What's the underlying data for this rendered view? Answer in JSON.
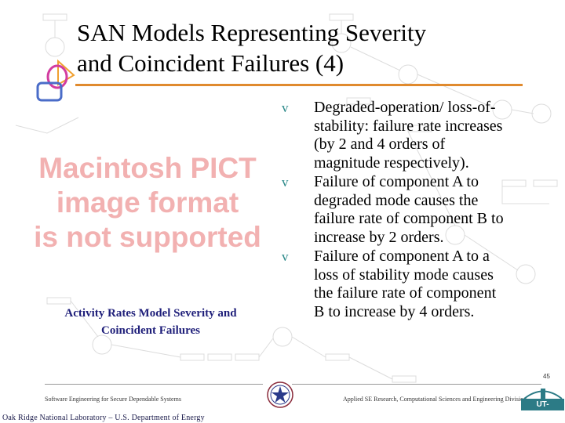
{
  "slide": {
    "title_line1": "SAN Models Representing Severity",
    "title_line2": "and Coincident Failures (4)",
    "image_placeholder": {
      "line1": "Macintosh PICT",
      "line2": "image format",
      "line3": "is not supported"
    },
    "figure_caption_line1": "Activity Rates Model Severity and",
    "figure_caption_line2": "Coincident Failures",
    "bullet_glyph": "v",
    "bullets": [
      {
        "line1": "Degraded-operation/ loss-of-",
        "line2": "stability: failure rate increases",
        "line3": "(by 2 and 4 orders of",
        "line4": "magnitude respectively)."
      },
      {
        "line1": "Failure of component A to",
        "line2": "degraded mode causes the",
        "line3": "failure rate of component B to",
        "line4": "increase by 2 orders."
      },
      {
        "line1": "Failure of component A to a",
        "line2": "loss of stability mode causes",
        "line3": "the failure rate of component",
        "line4": "B to increase by 4 orders."
      }
    ]
  },
  "footer": {
    "left_text": "Software Engineering for Secure Dependable Systems",
    "right_text": "Applied SE Research, Computational Sciences and Engineering Division",
    "page_number": "45",
    "lab_name": "Oak Ridge National Laboratory – U.S. Department of Energy",
    "partner_logo_text": "UT-BATTELLE"
  },
  "colors": {
    "title_rule": "#e08a2e",
    "bullet_marker": "#2d8a8a",
    "caption": "#1f1f7a",
    "placeholder_text": "#f2b1b1",
    "logo_blue": "#4a6cc8",
    "logo_magenta": "#d23ca0",
    "logo_orange": "#f0a030",
    "partner_logo": "#2c7b86"
  },
  "icons": {
    "presenter_logo": "overlapping-shapes-logo-icon",
    "emblem": "doe-star-emblem-icon",
    "bullet": "diamond-bullet-icon"
  }
}
